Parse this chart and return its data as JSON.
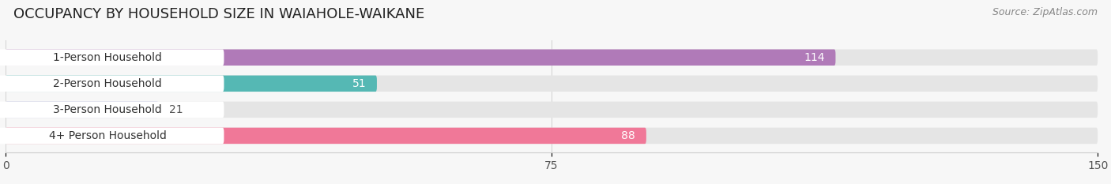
{
  "title": "OCCUPANCY BY HOUSEHOLD SIZE IN WAIAHOLE-WAIKANE",
  "source": "Source: ZipAtlas.com",
  "categories": [
    "1-Person Household",
    "2-Person Household",
    "3-Person Household",
    "4+ Person Household"
  ],
  "values": [
    114,
    51,
    21,
    88
  ],
  "bar_colors": [
    "#b07ab8",
    "#55b8b4",
    "#a8aad8",
    "#f07898"
  ],
  "xlim": [
    0,
    150
  ],
  "xticks": [
    0,
    75,
    150
  ],
  "title_fontsize": 13,
  "source_fontsize": 9,
  "bar_label_fontsize": 10,
  "value_fontsize": 10,
  "tick_fontsize": 10,
  "bar_height": 0.62,
  "background_color": "#f7f7f7",
  "bar_bg_color": "#e5e5e5",
  "label_bg_color": "#ffffff",
  "value_inside_color": "#ffffff",
  "value_outside_color": "#555555"
}
